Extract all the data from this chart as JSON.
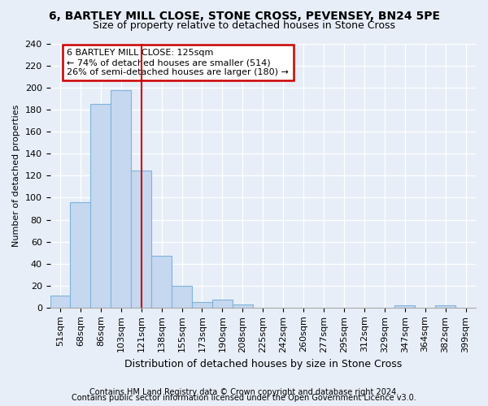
{
  "title1": "6, BARTLEY MILL CLOSE, STONE CROSS, PEVENSEY, BN24 5PE",
  "title2": "Size of property relative to detached houses in Stone Cross",
  "xlabel": "Distribution of detached houses by size in Stone Cross",
  "ylabel": "Number of detached properties",
  "categories": [
    "51sqm",
    "68sqm",
    "86sqm",
    "103sqm",
    "121sqm",
    "138sqm",
    "155sqm",
    "173sqm",
    "190sqm",
    "208sqm",
    "225sqm",
    "242sqm",
    "260sqm",
    "277sqm",
    "295sqm",
    "312sqm",
    "329sqm",
    "347sqm",
    "364sqm",
    "382sqm",
    "399sqm"
  ],
  "values": [
    11,
    96,
    185,
    198,
    125,
    47,
    20,
    5,
    7,
    3,
    0,
    0,
    0,
    0,
    0,
    0,
    0,
    2,
    0,
    2,
    0
  ],
  "bar_color": "#c5d8f0",
  "bar_edge_color": "#7fb3d9",
  "vline_color": "#cc0000",
  "vline_x": 4.0,
  "annotation_text_line1": "6 BARTLEY MILL CLOSE: 125sqm",
  "annotation_text_line2": "← 74% of detached houses are smaller (514)",
  "annotation_text_line3": "26% of semi-detached houses are larger (180) →",
  "annotation_box_facecolor": "white",
  "annotation_box_edgecolor": "#cc0000",
  "ylim": [
    0,
    240
  ],
  "yticks": [
    0,
    20,
    40,
    60,
    80,
    100,
    120,
    140,
    160,
    180,
    200,
    220,
    240
  ],
  "footer1": "Contains HM Land Registry data © Crown copyright and database right 2024.",
  "footer2": "Contains public sector information licensed under the Open Government Licence v3.0.",
  "bg_color": "#e8eef8",
  "plot_bg_color": "#e8eef8",
  "title1_fontsize": 10,
  "title2_fontsize": 9,
  "xlabel_fontsize": 9,
  "ylabel_fontsize": 8,
  "tick_fontsize": 8,
  "footer_fontsize": 7,
  "ann_fontsize": 8
}
